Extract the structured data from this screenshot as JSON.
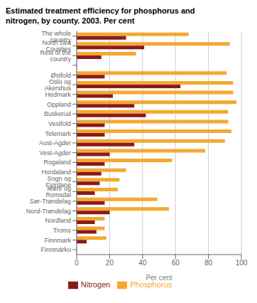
{
  "chart_data": {
    "type": "bar",
    "orientation": "horizontal",
    "title": "Estimated treatment efficiency for phosphorus and\nnitrogen, by county. 2003. Per cent",
    "x_label": "Per cent",
    "categories": [
      "The whole country",
      "North Sea Counties",
      "Rest of the country",
      null,
      "Østfold",
      "Oslo og Akershus",
      "Hedmark",
      "Oppland",
      "Buskerud",
      "Vestfold",
      "Telemark",
      "Aust-Agder",
      "Vest-Agder",
      "Rogaland",
      "Hordaland",
      "Sogn og Fjordane",
      "Møre og Romsdal",
      "Sør-Trøndelag",
      "Nord-Trøndelag",
      "Nordland",
      "Troms",
      "Finnmark",
      "Finnmárku"
    ],
    "series": [
      {
        "name": "Phosphorus",
        "color": "#F5A830",
        "values": [
          68,
          93,
          36,
          0,
          91,
          95,
          95,
          97,
          92,
          92,
          94,
          90,
          78,
          58,
          30,
          26,
          25,
          49,
          56,
          17,
          17,
          18,
          0
        ]
      },
      {
        "name": "Nitrogen",
        "color": "#8B1A1A",
        "values": [
          30,
          41,
          15,
          0,
          17,
          63,
          22,
          35,
          42,
          17,
          17,
          35,
          20,
          17,
          15,
          14,
          11,
          17,
          20,
          11,
          12,
          6,
          0
        ]
      }
    ],
    "xlim": [
      0,
      100
    ],
    "xticks": [
      0,
      20,
      40,
      60,
      80,
      100
    ],
    "grid": true,
    "legend": "bottom"
  }
}
